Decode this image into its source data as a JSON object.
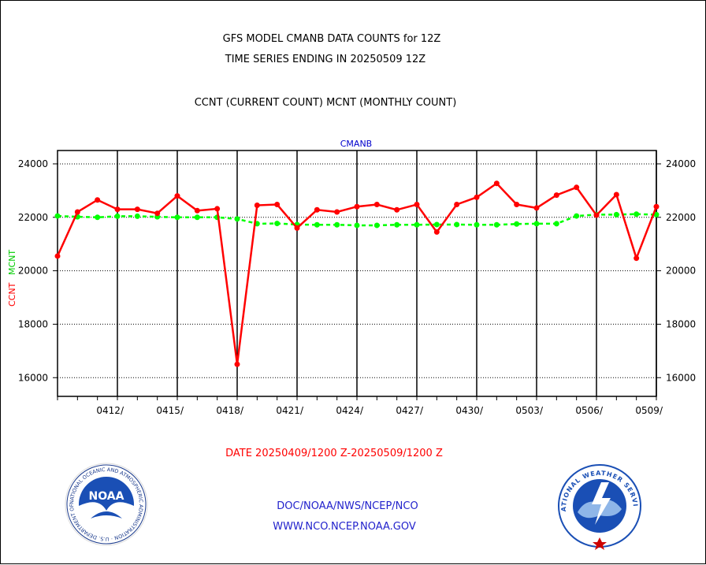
{
  "header": {
    "title_line1": "GFS MODEL CMANB DATA COUNTS for 12Z",
    "title_line2": "TIME SERIES ENDING IN 20250509 12Z",
    "subtitle": "CCNT (CURRENT COUNT) MCNT (MONTHLY COUNT)"
  },
  "footer": {
    "date_range": "DATE 20250409/1200 Z-20250509/1200 Z",
    "org_line": "DOC/NOAA/NWS/NCEP/NCO",
    "url_line": "WWW.NCO.NCEP.NOAA.GOV"
  },
  "logos": {
    "noaa_label": "NOAA",
    "noaa_ring_text": "NATIONAL OCEANIC AND ATMOSPHERIC ADMINISTRATION · U.S. DEPARTMENT OF COMMERCE",
    "nws_ring_text": "NATIONAL WEATHER SERVICE"
  },
  "colors": {
    "ccnt": "#ff0000",
    "mcnt": "#00ff00",
    "panel_title": "#0000cc",
    "footer_blue": "#2222cc",
    "date_red": "#ff0000"
  },
  "chart_data": {
    "type": "line",
    "panel_title": "CMANB",
    "ylabel_series": [
      "CCNT",
      "MCNT"
    ],
    "ylim": [
      15300,
      24500
    ],
    "yticks": [
      16000,
      18000,
      20000,
      22000,
      24000
    ],
    "x_tick_labels": [
      "0412/",
      "0415/",
      "0418/",
      "0421/",
      "0424/",
      "0427/",
      "0430/",
      "0503/",
      "0506/",
      "0509/"
    ],
    "x_tick_days": [
      3,
      6,
      9,
      12,
      15,
      18,
      21,
      24,
      27,
      30
    ],
    "x_days": [
      0,
      1,
      2,
      3,
      4,
      5,
      6,
      7,
      8,
      9,
      10,
      11,
      12,
      13,
      14,
      15,
      16,
      17,
      18,
      19,
      20,
      21,
      22,
      23,
      24,
      25,
      26,
      27,
      28,
      29,
      30
    ],
    "series": [
      {
        "name": "CCNT",
        "values": [
          20550,
          22200,
          22650,
          22300,
          22300,
          22150,
          22800,
          22250,
          22320,
          16500,
          22450,
          22480,
          21600,
          22280,
          22200,
          22400,
          22480,
          22280,
          22480,
          21450,
          22480,
          22750,
          23270,
          22480,
          22350,
          22830,
          23120,
          22080,
          22850,
          20470,
          22400
        ]
      },
      {
        "name": "MCNT",
        "values": [
          22050,
          22020,
          22000,
          22040,
          22040,
          22020,
          22000,
          22000,
          22000,
          21940,
          21760,
          21770,
          21730,
          21720,
          21720,
          21700,
          21700,
          21720,
          21720,
          21730,
          21730,
          21720,
          21720,
          21750,
          21760,
          21760,
          22050,
          22100,
          22100,
          22120,
          22100
        ]
      }
    ],
    "grid": true
  }
}
